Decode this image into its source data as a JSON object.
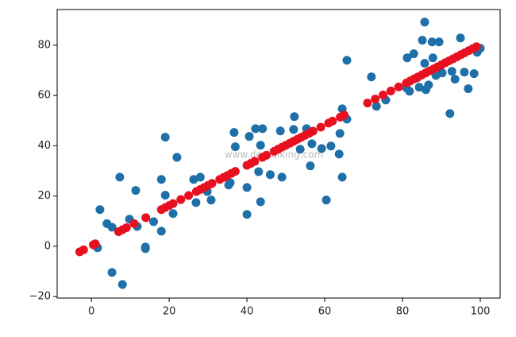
{
  "chart_data": {
    "type": "scatter",
    "annotation": "www.devtalking.com",
    "xlim": [
      -8.8,
      105.1
    ],
    "ylim": [
      -20.6,
      94.2
    ],
    "xticks": [
      0,
      20,
      40,
      60,
      80,
      100
    ],
    "yticks": [
      {
        "value": -20,
        "label": "−20"
      },
      0,
      20,
      40,
      60,
      80
    ],
    "series": [
      {
        "color": "#1f6fa8",
        "x": [
          2.2,
          1.6,
          4,
          5.3,
          5.3,
          8,
          7.3,
          9.8,
          11.4,
          11.8,
          13.9,
          13.9,
          16,
          18,
          18,
          19,
          19,
          21,
          22,
          26.3,
          26.9,
          28,
          29.8,
          30.8,
          35.3,
          35.7,
          36.7,
          37,
          40,
          40,
          40.6,
          42.2,
          43,
          43.5,
          43.5,
          44,
          46,
          48.6,
          49,
          52,
          52.2,
          53.7,
          55.3,
          56.3,
          56.7,
          59.2,
          60.4,
          61.6,
          63.7,
          63.9,
          64.5,
          64.5,
          65.7,
          65.7,
          72,
          73.3,
          75.7,
          81,
          81.2,
          81.8,
          82.9,
          83.7,
          85.1,
          85.7,
          86,
          85.7,
          86.7,
          87.6,
          89.4,
          88.6,
          90.2,
          92.2,
          92.7,
          93.5,
          94.9,
          95.9,
          96.9,
          98.4,
          99.2,
          100,
          84.3,
          87.8
        ],
        "values": [
          14.6,
          -0.6,
          9,
          7.6,
          -10.4,
          -15.2,
          27.5,
          10.8,
          22.2,
          7.9,
          -0.9,
          -0.3,
          9.8,
          26.6,
          6,
          43.4,
          20.3,
          13,
          35.4,
          26.6,
          17.4,
          27.5,
          21.8,
          18.4,
          24.4,
          25.3,
          45.3,
          39.6,
          23.4,
          12.7,
          43.7,
          46.8,
          29.7,
          40.2,
          17.7,
          46.8,
          28.5,
          45.9,
          27.5,
          46.5,
          51.6,
          38.6,
          46.8,
          32,
          40.8,
          38.9,
          18.4,
          39.9,
          36.7,
          44.9,
          27.5,
          54.7,
          74,
          50.6,
          67.4,
          55.7,
          58.2,
          63,
          75,
          61.7,
          76.6,
          67,
          82,
          89.2,
          62.3,
          72.8,
          64.2,
          81.3,
          81.3,
          68,
          69,
          52.8,
          69.6,
          66.5,
          82.9,
          69.3,
          62.7,
          68.7,
          77.2,
          78.8,
          63.3,
          75
        ]
      },
      {
        "color": "#e8101f",
        "x": [
          -3,
          -2,
          0.5,
          1,
          7,
          8,
          9,
          11,
          14,
          18,
          19,
          20,
          21,
          23,
          25,
          27,
          28,
          29,
          30,
          31,
          33,
          34,
          35,
          36,
          37,
          40,
          41,
          42,
          44,
          45,
          47,
          48,
          49,
          50,
          51,
          52,
          53,
          54,
          55,
          56,
          57,
          59,
          61,
          62,
          64,
          65,
          71,
          73,
          75,
          77,
          79,
          81,
          82,
          83,
          84,
          85,
          86,
          87,
          88,
          89,
          90,
          91,
          92,
          93,
          94,
          95,
          96,
          97,
          98,
          99
        ],
        "values": [
          -2.2,
          -1.4,
          0.6,
          1.0,
          5.8,
          6.6,
          7.4,
          9.0,
          11.4,
          14.6,
          15.4,
          16.2,
          17.0,
          18.6,
          20.2,
          21.8,
          22.6,
          23.4,
          24.2,
          25.0,
          26.6,
          27.4,
          28.2,
          29.0,
          29.8,
          32.2,
          33.0,
          33.8,
          35.4,
          36.2,
          37.8,
          38.6,
          39.4,
          40.2,
          41.0,
          41.8,
          42.6,
          43.4,
          44.2,
          45.0,
          45.8,
          47.4,
          49.0,
          49.8,
          51.4,
          52.2,
          57.0,
          58.6,
          60.2,
          61.8,
          63.4,
          65.0,
          65.8,
          66.6,
          67.4,
          68.2,
          69.0,
          69.8,
          70.6,
          71.4,
          72.2,
          73.0,
          73.8,
          74.6,
          75.4,
          76.2,
          77.0,
          77.8,
          78.6,
          79.4
        ]
      }
    ]
  }
}
